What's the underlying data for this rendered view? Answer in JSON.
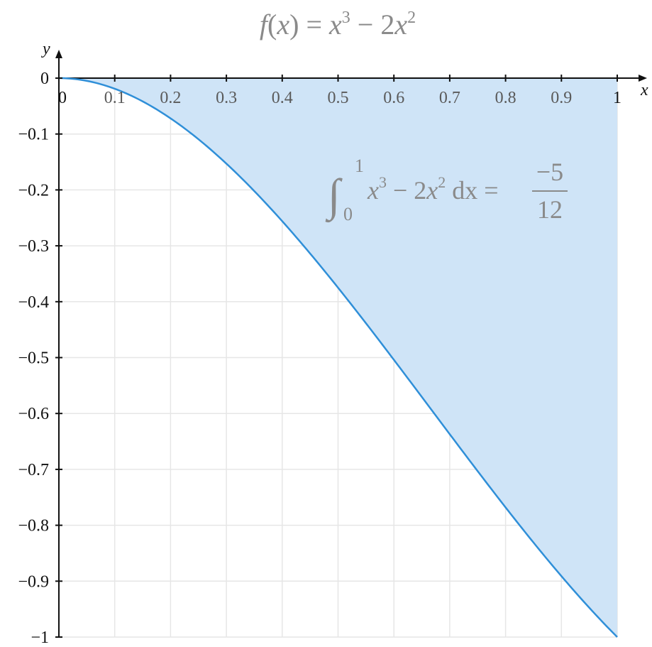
{
  "chart_data": {
    "type": "area",
    "function": "x^3 - 2x^2",
    "title": {
      "prefix": "f",
      "arg_open": "(",
      "arg": "x",
      "arg_close": ")",
      "eq": " = ",
      "term1": "x",
      "exp1": "3",
      "minus": " − 2",
      "term2": "x",
      "exp2": "2"
    },
    "xlabel": "x",
    "ylabel": "y",
    "xlim": [
      0,
      1
    ],
    "ylim": [
      -1,
      0
    ],
    "x_ticks": [
      0,
      0.1,
      0.2,
      0.3,
      0.4,
      0.5,
      0.6,
      0.7,
      0.8,
      0.9,
      1
    ],
    "x_tick_labels": [
      "0",
      "0.1",
      "0.2",
      "0.3",
      "0.4",
      "0.5",
      "0.6",
      "0.7",
      "0.8",
      "0.9",
      "1"
    ],
    "y_ticks": [
      0,
      -0.1,
      -0.2,
      -0.3,
      -0.4,
      -0.5,
      -0.6,
      -0.7,
      -0.8,
      -0.9,
      -1
    ],
    "y_tick_labels": [
      "0",
      "−0.1",
      "−0.2",
      "−0.3",
      "−0.4",
      "−0.5",
      "−0.6",
      "−0.7",
      "−0.8",
      "−0.9",
      "−1"
    ],
    "x": [
      0,
      0.1,
      0.2,
      0.3,
      0.4,
      0.5,
      0.6,
      0.7,
      0.8,
      0.9,
      1
    ],
    "y": [
      0,
      -0.019,
      -0.072,
      -0.153,
      -0.256,
      -0.375,
      -0.504,
      -0.637,
      -0.768,
      -0.891,
      -1
    ],
    "shaded_interval": [
      0,
      1
    ],
    "grid": true,
    "line_color": "#2f8fd8",
    "fill_color": "#cfe4f7",
    "annotation": {
      "integral_sign": "∫",
      "upper": "1",
      "lower": "0",
      "t1": "x",
      "e1": "3",
      "mid": " − 2",
      "t2": "x",
      "e2": "2",
      "dx": " dx = ",
      "numerator": "−5",
      "denominator": "12"
    }
  }
}
